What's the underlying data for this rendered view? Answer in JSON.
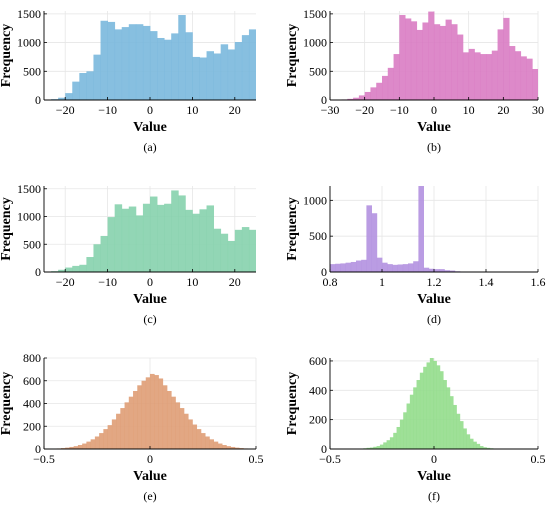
{
  "chart_data": [
    {
      "panel": "a",
      "caption": "(a)",
      "type": "histogram",
      "color": "#7ab8dd",
      "xlabel": "Value",
      "ylabel": "Frequency",
      "xlim": [
        -25,
        25
      ],
      "ylim": [
        0,
        1550
      ],
      "x_ticks": [
        -20,
        -10,
        0,
        10,
        20
      ],
      "y_ticks": [
        0,
        500,
        1000,
        1500
      ],
      "bin_start": -25,
      "bin_width": 1.6667,
      "values": [
        5,
        15,
        40,
        120,
        320,
        470,
        500,
        790,
        1380,
        1360,
        1230,
        1270,
        1320,
        1320,
        1290,
        1200,
        1080,
        1050,
        1160,
        1480,
        1180,
        750,
        740,
        850,
        810,
        970,
        880,
        1010,
        1130,
        1230
      ]
    },
    {
      "panel": "b",
      "caption": "(b)",
      "type": "histogram",
      "color": "#d97cc3",
      "xlabel": "Value",
      "ylabel": "Frequency",
      "xlim": [
        -30,
        30
      ],
      "ylim": [
        0,
        1550
      ],
      "x_ticks": [
        -30,
        -20,
        -10,
        0,
        10,
        20,
        30
      ],
      "y_ticks": [
        0,
        500,
        1000,
        1500
      ],
      "bin_start": -30,
      "bin_width": 1.6667,
      "values": [
        2,
        5,
        10,
        20,
        40,
        80,
        140,
        220,
        300,
        420,
        560,
        800,
        1480,
        1420,
        1370,
        1220,
        1350,
        1540,
        1320,
        1290,
        1400,
        1320,
        1140,
        830,
        890,
        830,
        800,
        800,
        860,
        1230,
        1430,
        940,
        850,
        760,
        720,
        540
      ]
    },
    {
      "panel": "c",
      "caption": "(c)",
      "type": "histogram",
      "color": "#86d1ad",
      "xlabel": "Value",
      "ylabel": "Frequency",
      "xlim": [
        -25,
        25
      ],
      "ylim": [
        0,
        1550
      ],
      "x_ticks": [
        -20,
        -10,
        0,
        10,
        20
      ],
      "y_ticks": [
        0,
        500,
        1000,
        1500
      ],
      "bin_start": -25,
      "bin_width": 1.6667,
      "values": [
        5,
        15,
        40,
        80,
        110,
        130,
        270,
        500,
        650,
        990,
        1220,
        1140,
        1180,
        1020,
        1230,
        1360,
        1210,
        1230,
        1470,
        1380,
        1120,
        1050,
        1130,
        1200,
        780,
        690,
        560,
        760,
        810,
        760
      ]
    },
    {
      "panel": "d",
      "caption": "(d)",
      "type": "histogram",
      "color": "#b391e0",
      "xlabel": "Value",
      "ylabel": "Frequency",
      "xlim": [
        0.8,
        1.6
      ],
      "ylim": [
        0,
        1200
      ],
      "x_ticks": [
        0.8,
        1.0,
        1.2,
        1.4,
        1.6
      ],
      "x_tick_labels": [
        "0.8",
        "1",
        "1.2",
        "1.4",
        "1.6"
      ],
      "y_ticks": [
        0,
        500,
        1000
      ],
      "bin_start": 0.8,
      "bin_width": 0.02,
      "values": [
        110,
        115,
        120,
        130,
        140,
        160,
        170,
        930,
        820,
        200,
        130,
        110,
        100,
        105,
        110,
        120,
        150,
        1200,
        60,
        45,
        40,
        40,
        25,
        20,
        10,
        5,
        5,
        2,
        2,
        2,
        2,
        2,
        2,
        2,
        2,
        2,
        2,
        2,
        2,
        2
      ]
    },
    {
      "panel": "e",
      "caption": "(e)",
      "type": "histogram",
      "color": "#df9d76",
      "xlabel": "Value",
      "ylabel": "Frequency",
      "xlim": [
        -0.5,
        0.5
      ],
      "ylim": [
        0,
        800
      ],
      "x_ticks": [
        -0.5,
        0,
        0.5
      ],
      "x_tick_labels": [
        "−0.5",
        "0",
        "0.5"
      ],
      "y_ticks": [
        0,
        200,
        400,
        600,
        800
      ],
      "bin_start": -0.5,
      "bin_width": 0.02,
      "values": [
        0,
        0,
        2,
        5,
        8,
        12,
        18,
        25,
        35,
        48,
        65,
        85,
        110,
        140,
        175,
        210,
        260,
        310,
        360,
        410,
        460,
        510,
        560,
        600,
        630,
        660,
        650,
        620,
        560,
        510,
        460,
        410,
        360,
        310,
        260,
        215,
        175,
        140,
        110,
        85,
        65,
        48,
        35,
        25,
        18,
        12,
        8,
        5,
        2,
        0
      ]
    },
    {
      "panel": "f",
      "caption": "(f)",
      "type": "histogram",
      "color": "#93dd8c",
      "xlabel": "Value",
      "ylabel": "Frequency",
      "xlim": [
        -0.5,
        0.5
      ],
      "ylim": [
        0,
        620
      ],
      "x_ticks": [
        -0.5,
        0,
        0.5
      ],
      "x_tick_labels": [
        "−0.5",
        "0",
        "0.5"
      ],
      "y_ticks": [
        0,
        200,
        400,
        600
      ],
      "bin_start": -0.5,
      "bin_width": 0.016,
      "values": [
        0,
        0,
        0,
        0,
        0,
        0,
        0,
        0,
        2,
        3,
        5,
        8,
        10,
        15,
        20,
        30,
        45,
        60,
        80,
        110,
        150,
        200,
        250,
        310,
        370,
        420,
        470,
        520,
        560,
        590,
        620,
        600,
        570,
        530,
        470,
        420,
        360,
        300,
        240,
        190,
        140,
        100,
        70,
        50,
        35,
        20,
        12,
        8,
        5,
        3,
        2,
        0,
        0,
        0,
        0,
        0,
        0,
        0,
        0,
        0,
        0,
        0,
        0
      ]
    }
  ]
}
